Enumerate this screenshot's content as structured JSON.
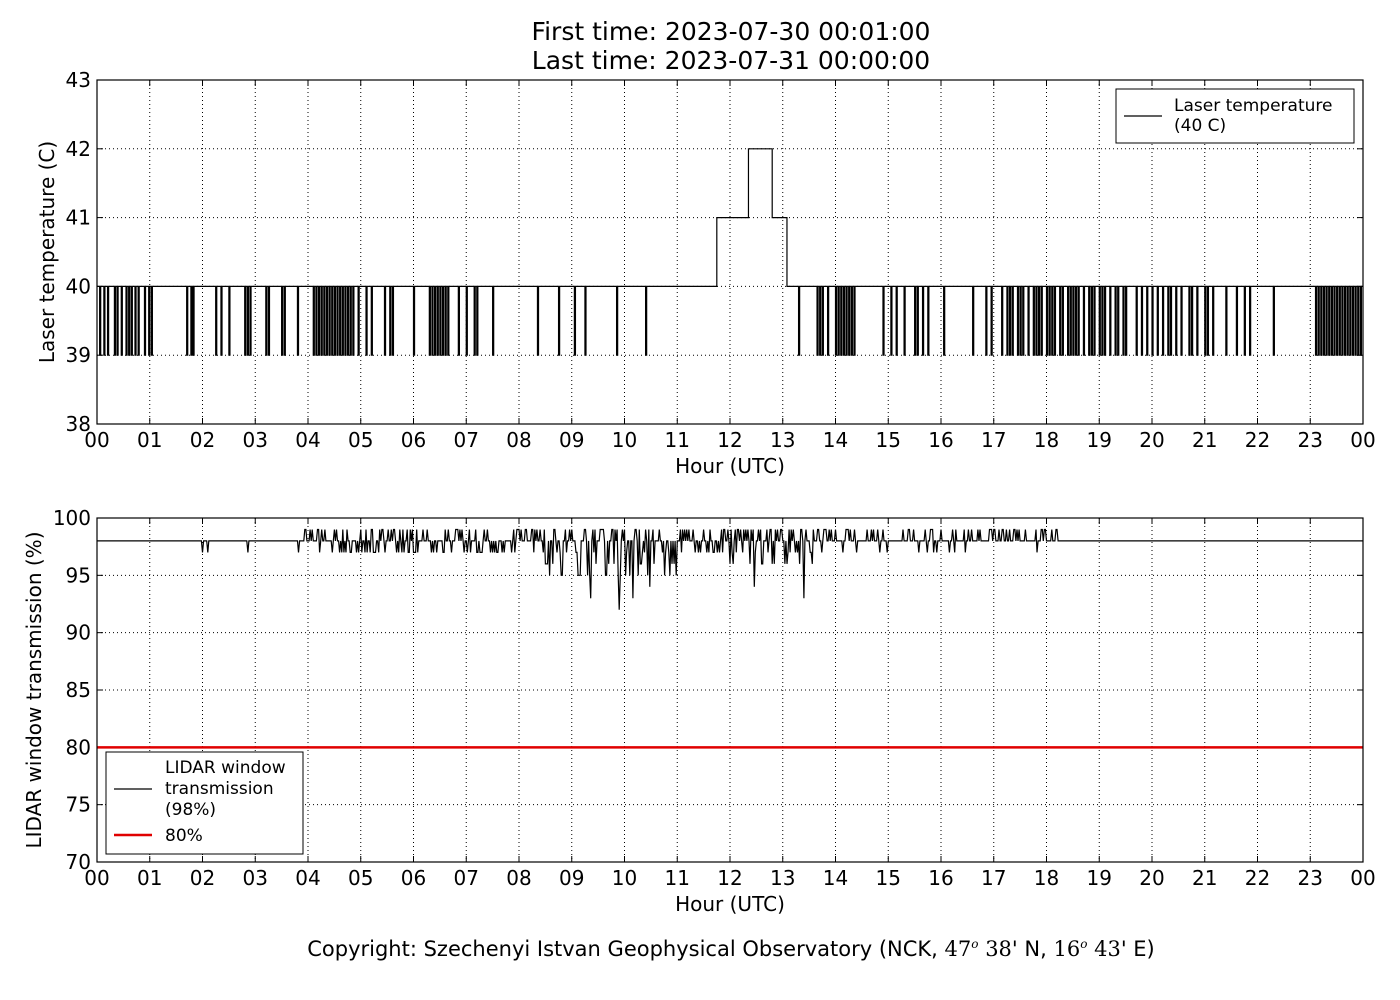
{
  "header": {
    "first_time": "First time: 2023-07-30 00:01:00",
    "last_time": "Last time: 2023-07-31 00:00:00"
  },
  "footer": {
    "copyright_prefix": "Copyright: Szechenyi Istvan Geophysical Observatory (NCK,",
    "lat_deg": "47",
    "lat_min": "38",
    "lat_suffix": "' N,",
    "lon_deg": "16",
    "lon_min": "43",
    "lon_suffix": "' E)",
    "degree_symbol": "o"
  },
  "colors": {
    "series": "#000000",
    "threshold": "#e00000",
    "grid": "#000000"
  },
  "chart_data": [
    {
      "type": "line",
      "title": "",
      "xlabel": "Hour (UTC)",
      "ylabel": "Laser temperature (C)",
      "xlim": [
        0,
        24
      ],
      "ylim": [
        38,
        43
      ],
      "x_ticks": [
        "00",
        "01",
        "02",
        "03",
        "04",
        "05",
        "06",
        "07",
        "08",
        "09",
        "10",
        "11",
        "12",
        "13",
        "14",
        "15",
        "16",
        "17",
        "18",
        "19",
        "20",
        "21",
        "22",
        "23",
        "00"
      ],
      "y_ticks": [
        38,
        39,
        40,
        41,
        42,
        43
      ],
      "grid": true,
      "legend_position": "top-right",
      "series": [
        {
          "name": "Laser temperature (40 C)",
          "legend_lines": [
            "Laser temperature",
            "(40 C)"
          ],
          "color": "#000000",
          "step": true,
          "baseline": 40,
          "dips": [
            0.05,
            0.13,
            0.2,
            0.33,
            0.38,
            0.46,
            0.55,
            0.6,
            0.65,
            0.72,
            0.78,
            0.9,
            0.98,
            1.03,
            1.7,
            1.78,
            1.82,
            2.25,
            2.35,
            2.5,
            2.8,
            2.85,
            2.9,
            3.2,
            3.25,
            3.5,
            3.55,
            3.8,
            4.1,
            4.15,
            4.2,
            4.25,
            4.3,
            4.35,
            4.4,
            4.45,
            4.5,
            4.55,
            4.6,
            4.65,
            4.7,
            4.75,
            4.8,
            4.85,
            4.95,
            5.1,
            5.2,
            5.45,
            5.55,
            5.6,
            6.0,
            6.3,
            6.35,
            6.4,
            6.45,
            6.5,
            6.55,
            6.6,
            6.65,
            6.85,
            7.0,
            7.15,
            7.2,
            7.5,
            8.35,
            8.75,
            9.05,
            9.25,
            9.85,
            10.4,
            13.3,
            13.65,
            13.7,
            13.75,
            13.85,
            14.0,
            14.05,
            14.1,
            14.15,
            14.2,
            14.25,
            14.3,
            14.35,
            14.9,
            15.05,
            15.15,
            15.3,
            15.5,
            15.55,
            15.65,
            15.75,
            16.05,
            16.6,
            16.85,
            16.95,
            17.15,
            17.25,
            17.3,
            17.35,
            17.45,
            17.5,
            17.55,
            17.65,
            17.75,
            17.8,
            17.85,
            17.9,
            18.0,
            18.05,
            18.1,
            18.15,
            18.25,
            18.3,
            18.4,
            18.45,
            18.5,
            18.55,
            18.6,
            18.7,
            18.8,
            18.85,
            18.9,
            19.0,
            19.05,
            19.1,
            19.2,
            19.3,
            19.35,
            19.45,
            19.5,
            19.7,
            19.8,
            19.9,
            20.0,
            20.1,
            20.2,
            20.3,
            20.35,
            20.45,
            20.55,
            20.7,
            20.75,
            20.85,
            21.0,
            21.05,
            21.15,
            21.4,
            21.6,
            21.75,
            21.85,
            22.3,
            23.1,
            23.15,
            23.2,
            23.25,
            23.3,
            23.35,
            23.4,
            23.45,
            23.5,
            23.55,
            23.6,
            23.65,
            23.7,
            23.75,
            23.8,
            23.85,
            23.9,
            23.95
          ],
          "segments": [
            {
              "x0": 11.75,
              "x1": 12.35,
              "y": 41
            },
            {
              "x0": 12.35,
              "x1": 12.8,
              "y": 42
            },
            {
              "x0": 12.8,
              "x1": 13.08,
              "y": 41
            }
          ]
        }
      ]
    },
    {
      "type": "line",
      "title": "",
      "xlabel": "Hour (UTC)",
      "ylabel": "LIDAR window transmission (%)",
      "xlim": [
        0,
        24
      ],
      "ylim": [
        70,
        100
      ],
      "x_ticks": [
        "00",
        "01",
        "02",
        "03",
        "04",
        "05",
        "06",
        "07",
        "08",
        "09",
        "10",
        "11",
        "12",
        "13",
        "14",
        "15",
        "16",
        "17",
        "18",
        "19",
        "20",
        "21",
        "22",
        "23",
        "00"
      ],
      "y_ticks": [
        70,
        75,
        80,
        85,
        90,
        95,
        100
      ],
      "grid": true,
      "legend_position": "bottom-left",
      "series": [
        {
          "name": "LIDAR window transmission (98%)",
          "legend_lines": [
            "LIDAR window",
            "transmission",
            "(98%)"
          ],
          "color": "#000000",
          "baseline": 98,
          "noisy_ranges": [
            {
              "x0": 3.8,
              "x1": 4.5,
              "amp_low": 1,
              "amp_high": 1
            },
            {
              "x0": 4.5,
              "x1": 7.5,
              "amp_low": 2,
              "amp_high": 1
            },
            {
              "x0": 7.5,
              "x1": 8.5,
              "amp_low": 2,
              "amp_high": 1
            },
            {
              "x0": 8.5,
              "x1": 11.0,
              "amp_low": 6,
              "amp_high": 1
            },
            {
              "x0": 11.0,
              "x1": 12.0,
              "amp_low": 2,
              "amp_high": 1
            },
            {
              "x0": 12.0,
              "x1": 13.6,
              "amp_low": 4,
              "amp_high": 1
            },
            {
              "x0": 13.6,
              "x1": 15.0,
              "amp_low": 1,
              "amp_high": 1
            },
            {
              "x0": 15.0,
              "x1": 18.3,
              "amp_low": 1,
              "amp_high": 1
            }
          ],
          "spikes": [
            {
              "x": 2.0,
              "y": 97
            },
            {
              "x": 2.1,
              "y": 97
            },
            {
              "x": 2.85,
              "y": 97
            },
            {
              "x": 9.35,
              "y": 93
            },
            {
              "x": 9.9,
              "y": 92
            },
            {
              "x": 10.15,
              "y": 93
            },
            {
              "x": 12.45,
              "y": 94
            },
            {
              "x": 13.4,
              "y": 93
            }
          ]
        },
        {
          "name": "80%",
          "color": "#e00000",
          "values_constant": 80
        }
      ]
    }
  ]
}
